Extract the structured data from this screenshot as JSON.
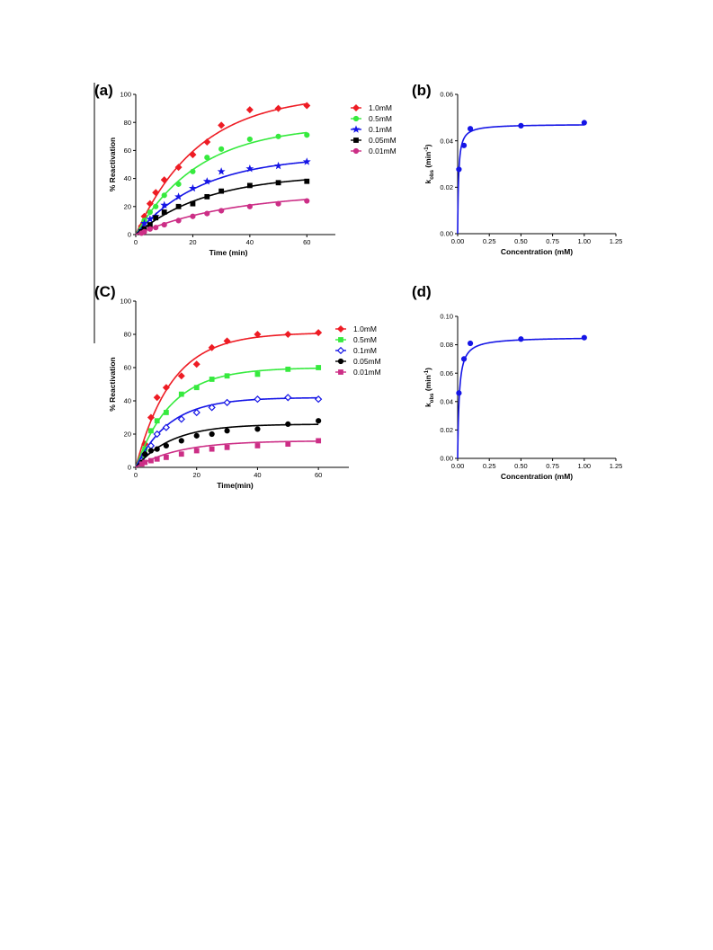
{
  "chart_data": [
    {
      "id": "a",
      "panel_label": "(a)",
      "type": "scatter",
      "xlabel": "Time (min)",
      "ylabel": "% Reactivation",
      "xlim": [
        0,
        70
      ],
      "ylim": [
        0,
        100
      ],
      "xticks": [
        "0",
        "20",
        "40",
        "60"
      ],
      "yticks": [
        "0",
        "20",
        "40",
        "60",
        "80",
        "100"
      ],
      "grid": false,
      "legend_position": "right",
      "series": [
        {
          "name": "1.0mM",
          "color": "#ee1c24",
          "marker": "diamond",
          "filled": true,
          "fit": {
            "ymax": 100,
            "k": 0.045
          },
          "points": [
            [
              2,
              6
            ],
            [
              3,
              13
            ],
            [
              5,
              22
            ],
            [
              7,
              30
            ],
            [
              10,
              39
            ],
            [
              15,
              48
            ],
            [
              20,
              57
            ],
            [
              25,
              66
            ],
            [
              30,
              78
            ],
            [
              40,
              89
            ],
            [
              50,
              90
            ],
            [
              60,
              92
            ]
          ]
        },
        {
          "name": "0.5mM",
          "color": "#36ea3e",
          "marker": "circle",
          "filled": true,
          "fit": {
            "ymax": 78,
            "k": 0.045
          },
          "points": [
            [
              2,
              4
            ],
            [
              3,
              10
            ],
            [
              5,
              16
            ],
            [
              7,
              20
            ],
            [
              10,
              28
            ],
            [
              15,
              36
            ],
            [
              20,
              45
            ],
            [
              25,
              55
            ],
            [
              30,
              61
            ],
            [
              40,
              68
            ],
            [
              50,
              70
            ],
            [
              60,
              71
            ]
          ]
        },
        {
          "name": "0.1mM",
          "color": "#1515e6",
          "marker": "star",
          "filled": true,
          "fit": {
            "ymax": 56,
            "k": 0.043
          },
          "points": [
            [
              2,
              3
            ],
            [
              3,
              8
            ],
            [
              5,
              11
            ],
            [
              7,
              13
            ],
            [
              10,
              21
            ],
            [
              15,
              27
            ],
            [
              20,
              33
            ],
            [
              25,
              38
            ],
            [
              30,
              45
            ],
            [
              40,
              47
            ],
            [
              50,
              49
            ],
            [
              60,
              52
            ]
          ]
        },
        {
          "name": "0.05mM",
          "color": "#000000",
          "marker": "square",
          "filled": true,
          "fit": {
            "ymax": 43,
            "k": 0.04
          },
          "points": [
            [
              2,
              2
            ],
            [
              3,
              4
            ],
            [
              5,
              7
            ],
            [
              7,
              12
            ],
            [
              10,
              16
            ],
            [
              15,
              20
            ],
            [
              20,
              22
            ],
            [
              25,
              27
            ],
            [
              30,
              31
            ],
            [
              40,
              35
            ],
            [
              50,
              37
            ],
            [
              60,
              38
            ]
          ]
        },
        {
          "name": "0.01mM",
          "color": "#cc2e86",
          "marker": "circle",
          "filled": true,
          "fit": {
            "ymax": 30,
            "k": 0.03
          },
          "points": [
            [
              2,
              1
            ],
            [
              3,
              2
            ],
            [
              5,
              4
            ],
            [
              7,
              5
            ],
            [
              10,
              7
            ],
            [
              15,
              10
            ],
            [
              20,
              13
            ],
            [
              25,
              15
            ],
            [
              30,
              17
            ],
            [
              40,
              20
            ],
            [
              50,
              22
            ],
            [
              60,
              24
            ]
          ]
        }
      ]
    },
    {
      "id": "b",
      "panel_label": "(b)",
      "type": "scatter",
      "xlabel": "Concentration (mM)",
      "ylabel_main": "k",
      "ylabel_sub": "obs",
      "ylabel_rest": " (min",
      "ylabel_sup": "-1",
      "ylabel_end": ")",
      "xlim": [
        0,
        1.25
      ],
      "ylim": [
        0,
        0.06
      ],
      "xticks": [
        "0.00",
        "0.25",
        "0.50",
        "0.75",
        "1.00",
        "1.25"
      ],
      "yticks": [
        "0.00",
        "0.02",
        "0.04",
        "0.06"
      ],
      "grid": false,
      "series": [
        {
          "color": "#1515e6",
          "marker": "circle",
          "filled": true,
          "fit": {
            "kmax": 0.0472,
            "kd": 0.0075
          },
          "points": [
            [
              0.01,
              0.0277
            ],
            [
              0.05,
              0.038
            ],
            [
              0.1,
              0.0452
            ],
            [
              0.5,
              0.0465
            ],
            [
              1.0,
              0.0478
            ]
          ]
        }
      ]
    },
    {
      "id": "c",
      "panel_label": "(C)",
      "type": "scatter",
      "xlabel": "Time(min)",
      "ylabel": "% Reactivation",
      "xlim": [
        0,
        70
      ],
      "ylim": [
        0,
        100
      ],
      "xticks": [
        "0",
        "20",
        "40",
        "60"
      ],
      "yticks": [
        "0",
        "20",
        "40",
        "60",
        "80",
        "100"
      ],
      "grid": false,
      "legend_position": "right",
      "series": [
        {
          "name": "1.0mM",
          "color": "#ee1c24",
          "marker": "diamond",
          "filled": true,
          "fit": {
            "ymax": 81,
            "k": 0.085
          },
          "points": [
            [
              2,
              6
            ],
            [
              3,
              14
            ],
            [
              5,
              30
            ],
            [
              7,
              42
            ],
            [
              10,
              48
            ],
            [
              15,
              55
            ],
            [
              20,
              62
            ],
            [
              25,
              72
            ],
            [
              30,
              76
            ],
            [
              40,
              80
            ],
            [
              50,
              80
            ],
            [
              60,
              81
            ]
          ]
        },
        {
          "name": "0.5mM",
          "color": "#36ea3e",
          "marker": "square",
          "filled": true,
          "fit": {
            "ymax": 60,
            "k": 0.085
          },
          "points": [
            [
              2,
              5
            ],
            [
              3,
              11
            ],
            [
              5,
              22
            ],
            [
              7,
              28
            ],
            [
              10,
              33
            ],
            [
              15,
              44
            ],
            [
              20,
              48
            ],
            [
              25,
              53
            ],
            [
              30,
              55
            ],
            [
              40,
              56
            ],
            [
              50,
              59
            ],
            [
              60,
              60
            ]
          ]
        },
        {
          "name": "0.1mM",
          "color": "#1515e6",
          "marker": "diamond",
          "filled": false,
          "fit": {
            "ymax": 42,
            "k": 0.09
          },
          "points": [
            [
              2,
              4
            ],
            [
              3,
              8
            ],
            [
              5,
              13
            ],
            [
              7,
              20
            ],
            [
              10,
              24
            ],
            [
              15,
              29
            ],
            [
              20,
              33
            ],
            [
              25,
              36
            ],
            [
              30,
              39
            ],
            [
              40,
              41
            ],
            [
              50,
              42
            ],
            [
              60,
              41
            ]
          ]
        },
        {
          "name": "0.05mM",
          "color": "#000000",
          "marker": "circle",
          "filled": true,
          "fit": {
            "ymax": 26,
            "k": 0.085
          },
          "points": [
            [
              2,
              3
            ],
            [
              3,
              8
            ],
            [
              5,
              10
            ],
            [
              7,
              11
            ],
            [
              10,
              13
            ],
            [
              15,
              16
            ],
            [
              20,
              19
            ],
            [
              25,
              20
            ],
            [
              30,
              22
            ],
            [
              40,
              23
            ],
            [
              50,
              26
            ],
            [
              60,
              28
            ]
          ]
        },
        {
          "name": "0.01mM",
          "color": "#cc2e86",
          "marker": "square",
          "filled": true,
          "fit": {
            "ymax": 16,
            "k": 0.07
          },
          "points": [
            [
              2,
              2
            ],
            [
              3,
              3
            ],
            [
              5,
              4
            ],
            [
              7,
              5
            ],
            [
              10,
              6
            ],
            [
              15,
              8
            ],
            [
              20,
              10
            ],
            [
              25,
              11
            ],
            [
              30,
              12
            ],
            [
              40,
              13
            ],
            [
              50,
              14
            ],
            [
              60,
              16
            ]
          ]
        }
      ]
    },
    {
      "id": "d",
      "panel_label": "(d)",
      "type": "scatter",
      "xlabel": "Concentration (mM)",
      "ylabel_main": "k",
      "ylabel_sub": "obs",
      "ylabel_rest": " (min",
      "ylabel_sup": "-1",
      "ylabel_end": ")",
      "xlim": [
        0,
        1.25
      ],
      "ylim": [
        0,
        0.1
      ],
      "xticks": [
        "0.00",
        "0.25",
        "0.50",
        "0.75",
        "1.00",
        "1.25"
      ],
      "yticks": [
        "0.00",
        "0.02",
        "0.04",
        "0.06",
        "0.08",
        "0.10"
      ],
      "grid": false,
      "series": [
        {
          "color": "#1515e6",
          "marker": "circle",
          "filled": true,
          "fit": {
            "kmax": 0.0855,
            "kd": 0.0125
          },
          "points": [
            [
              0.01,
              0.046
            ],
            [
              0.05,
              0.07
            ],
            [
              0.1,
              0.081
            ],
            [
              0.5,
              0.084
            ],
            [
              1.0,
              0.085
            ]
          ]
        }
      ]
    }
  ]
}
